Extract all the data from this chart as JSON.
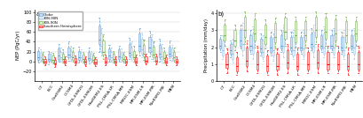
{
  "panel_a_title": "a)",
  "panel_b_title": "b)",
  "ylabel_a": "NEP (PgC/yr)",
  "ylabel_b": "Precipitation (mm/day)",
  "ylim_a": [
    -40,
    105
  ],
  "ylim_b": [
    0,
    4.2
  ],
  "yticks_a": [
    -20,
    0,
    20,
    40,
    60,
    80,
    100
  ],
  "yticks_b": [
    0.0,
    1.0,
    2.0,
    3.0,
    4.0
  ],
  "models": [
    "CT",
    "BCC",
    "CanESM2",
    "CCSM4",
    "GFDL-ESM2G",
    "GFDL-ESM2M",
    "HadGEM2-ES",
    "IPSL-CM5A-LR",
    "IPSL-CM5A-MR",
    "MIROC-ESM",
    "MPI-ESM-LR",
    "MPI-ESM-MR",
    "NorESM1-ME",
    "MEM"
  ],
  "legend_labels": [
    "Globe",
    "30N-90N",
    "30S-90N",
    "Southern Hemisphere"
  ],
  "colors": [
    "#5B9BD5",
    "#9DC3E6",
    "#70AD47",
    "#FF0000"
  ],
  "face_colors": [
    "#BDD7EE",
    "#DEEAF1",
    "#E2EFDA",
    "#FFB3B3"
  ],
  "series": {
    "nep": {
      "Globe": {
        "CT": [
          -2,
          4,
          8,
          14,
          22,
          28
        ],
        "BCC": [
          -5,
          2,
          6,
          10,
          16,
          22
        ],
        "CanESM2": [
          0,
          6,
          12,
          18,
          26,
          36
        ],
        "CCSM4": [
          2,
          8,
          14,
          20,
          28,
          40
        ],
        "GFDL-ESM2G": [
          -2,
          4,
          8,
          14,
          22,
          30
        ],
        "GFDL-ESM2M": [
          -3,
          3,
          7,
          13,
          20,
          28
        ],
        "HadGEM2-ES": [
          20,
          35,
          45,
          58,
          72,
          88
        ],
        "IPSL-CM5A-LR": [
          0,
          6,
          12,
          18,
          26,
          34
        ],
        "IPSL-CM5A-MR": [
          0,
          5,
          10,
          16,
          24,
          32
        ],
        "MIROC-ESM": [
          5,
          12,
          18,
          26,
          36,
          48
        ],
        "MPI-ESM-LR": [
          12,
          22,
          32,
          44,
          56,
          68
        ],
        "MPI-ESM-MR": [
          10,
          20,
          28,
          38,
          50,
          62
        ],
        "NorESM1-ME": [
          0,
          8,
          15,
          24,
          34,
          46
        ],
        "MEM": [
          4,
          10,
          16,
          22,
          30,
          42
        ]
      },
      "30N-90N": {
        "CT": [
          0,
          4,
          8,
          13,
          18,
          24
        ],
        "BCC": [
          -2,
          3,
          6,
          10,
          15,
          20
        ],
        "CanESM2": [
          0,
          5,
          9,
          14,
          20,
          28
        ],
        "CCSM4": [
          2,
          6,
          10,
          16,
          22,
          32
        ],
        "GFDL-ESM2G": [
          0,
          4,
          8,
          13,
          18,
          24
        ],
        "GFDL-ESM2M": [
          -2,
          2,
          6,
          10,
          15,
          22
        ],
        "HadGEM2-ES": [
          12,
          22,
          32,
          44,
          56,
          68
        ],
        "IPSL-CM5A-LR": [
          0,
          4,
          9,
          14,
          20,
          28
        ],
        "IPSL-CM5A-MR": [
          0,
          4,
          8,
          13,
          18,
          26
        ],
        "MIROC-ESM": [
          4,
          9,
          14,
          20,
          28,
          40
        ],
        "MPI-ESM-LR": [
          8,
          16,
          24,
          34,
          46,
          58
        ],
        "MPI-ESM-MR": [
          6,
          14,
          22,
          30,
          42,
          54
        ],
        "NorESM1-ME": [
          -2,
          5,
          10,
          18,
          26,
          36
        ],
        "MEM": [
          2,
          7,
          12,
          18,
          26,
          34
        ]
      },
      "30S-90N": {
        "CT": [
          -2,
          2,
          5,
          9,
          14,
          20
        ],
        "BCC": [
          -4,
          0,
          4,
          8,
          12,
          18
        ],
        "CanESM2": [
          -2,
          2,
          6,
          10,
          16,
          24
        ],
        "CCSM4": [
          0,
          4,
          8,
          14,
          20,
          28
        ],
        "GFDL-ESM2G": [
          -2,
          2,
          5,
          9,
          14,
          20
        ],
        "GFDL-ESM2M": [
          -3,
          0,
          4,
          8,
          12,
          18
        ],
        "HadGEM2-ES": [
          6,
          14,
          20,
          30,
          42,
          54
        ],
        "IPSL-CM5A-LR": [
          -2,
          2,
          6,
          10,
          16,
          22
        ],
        "IPSL-CM5A-MR": [
          -2,
          2,
          5,
          9,
          14,
          20
        ],
        "MIROC-ESM": [
          0,
          5,
          9,
          15,
          22,
          32
        ],
        "MPI-ESM-LR": [
          4,
          10,
          16,
          24,
          34,
          44
        ],
        "MPI-ESM-MR": [
          2,
          8,
          14,
          20,
          30,
          40
        ],
        "NorESM1-ME": [
          -2,
          3,
          7,
          13,
          20,
          28
        ],
        "MEM": [
          0,
          4,
          8,
          13,
          20,
          28
        ]
      },
      "Southern Hemisphere": {
        "CT": [
          -8,
          -4,
          -1,
          2,
          6,
          10
        ],
        "BCC": [
          -10,
          -6,
          -3,
          0,
          4,
          8
        ],
        "CanESM2": [
          -8,
          -4,
          -1,
          2,
          6,
          10
        ],
        "CCSM4": [
          -8,
          -4,
          0,
          3,
          7,
          12
        ],
        "GFDL-ESM2G": [
          -9,
          -5,
          -1,
          2,
          6,
          10
        ],
        "GFDL-ESM2M": [
          -9,
          -5,
          -2,
          1,
          5,
          9
        ],
        "HadGEM2-ES": [
          -8,
          -4,
          0,
          3,
          8,
          14
        ],
        "IPSL-CM5A-LR": [
          -8,
          -4,
          -1,
          2,
          6,
          10
        ],
        "IPSL-CM5A-MR": [
          -8,
          -4,
          -1,
          2,
          6,
          10
        ],
        "MIROC-ESM": [
          -8,
          -4,
          0,
          3,
          8,
          14
        ],
        "MPI-ESM-LR": [
          -6,
          -2,
          2,
          5,
          10,
          16
        ],
        "MPI-ESM-MR": [
          -6,
          -2,
          2,
          5,
          10,
          16
        ],
        "NorESM1-ME": [
          -8,
          -4,
          0,
          3,
          8,
          14
        ],
        "MEM": [
          -8,
          -4,
          -1,
          2,
          6,
          10
        ]
      }
    },
    "precip": {
      "Globe": {
        "CT": [
          1.7,
          1.9,
          2.1,
          2.3,
          2.5,
          2.7
        ],
        "BCC": [
          1.4,
          1.6,
          1.8,
          2.0,
          2.2,
          2.4
        ],
        "CanESM2": [
          1.9,
          2.1,
          2.4,
          2.7,
          3.0,
          3.3
        ],
        "CCSM4": [
          1.6,
          1.8,
          2.1,
          2.4,
          2.7,
          3.0
        ],
        "GFDL-ESM2G": [
          1.5,
          1.7,
          1.9,
          2.2,
          2.5,
          2.8
        ],
        "GFDL-ESM2M": [
          1.5,
          1.7,
          2.0,
          2.3,
          2.6,
          2.9
        ],
        "HadGEM2-ES": [
          1.7,
          1.9,
          2.1,
          2.4,
          2.7,
          3.0
        ],
        "IPSL-CM5A-LR": [
          1.6,
          1.8,
          2.0,
          2.3,
          2.6,
          2.9
        ],
        "IPSL-CM5A-MR": [
          1.6,
          1.8,
          2.0,
          2.3,
          2.6,
          2.9
        ],
        "MIROC-ESM": [
          1.8,
          2.0,
          2.2,
          2.5,
          2.8,
          3.1
        ],
        "MPI-ESM-LR": [
          1.7,
          1.9,
          2.1,
          2.4,
          2.7,
          3.0
        ],
        "MPI-ESM-MR": [
          1.7,
          1.9,
          2.1,
          2.4,
          2.7,
          3.0
        ],
        "NorESM1-ME": [
          1.6,
          1.8,
          2.0,
          2.3,
          2.6,
          2.9
        ],
        "MEM": [
          1.7,
          1.9,
          2.1,
          2.4,
          2.7,
          3.0
        ]
      },
      "30N-90N": {
        "CT": [
          1.3,
          1.5,
          1.8,
          2.1,
          2.4,
          2.7
        ],
        "BCC": [
          1.1,
          1.3,
          1.6,
          1.9,
          2.2,
          2.5
        ],
        "CanESM2": [
          1.5,
          1.8,
          2.2,
          2.6,
          3.0,
          3.4
        ],
        "CCSM4": [
          1.3,
          1.6,
          2.0,
          2.4,
          2.8,
          3.2
        ],
        "GFDL-ESM2G": [
          1.2,
          1.4,
          1.7,
          2.0,
          2.4,
          2.7
        ],
        "GFDL-ESM2M": [
          1.2,
          1.5,
          1.8,
          2.2,
          2.5,
          2.8
        ],
        "HadGEM2-ES": [
          1.4,
          1.7,
          2.1,
          2.5,
          2.9,
          3.3
        ],
        "IPSL-CM5A-LR": [
          1.3,
          1.5,
          1.8,
          2.2,
          2.6,
          3.0
        ],
        "IPSL-CM5A-MR": [
          1.3,
          1.5,
          1.9,
          2.2,
          2.6,
          3.0
        ],
        "MIROC-ESM": [
          1.4,
          1.7,
          2.1,
          2.5,
          2.9,
          3.3
        ],
        "MPI-ESM-LR": [
          1.4,
          1.6,
          2.0,
          2.4,
          2.8,
          3.2
        ],
        "MPI-ESM-MR": [
          1.4,
          1.6,
          2.0,
          2.3,
          2.7,
          3.1
        ],
        "NorESM1-ME": [
          1.3,
          1.5,
          1.8,
          2.2,
          2.6,
          3.0
        ],
        "MEM": [
          1.3,
          1.6,
          2.0,
          2.3,
          2.7,
          3.1
        ]
      },
      "30S-90N": {
        "CT": [
          2.1,
          2.4,
          2.7,
          3.0,
          3.3,
          3.6
        ],
        "BCC": [
          1.8,
          2.1,
          2.4,
          2.7,
          3.0,
          3.3
        ],
        "CanESM2": [
          2.2,
          2.6,
          3.0,
          3.4,
          3.8,
          4.1
        ],
        "CCSM4": [
          2.0,
          2.4,
          2.8,
          3.2,
          3.6,
          4.0
        ],
        "GFDL-ESM2G": [
          1.9,
          2.2,
          2.6,
          2.9,
          3.3,
          3.6
        ],
        "GFDL-ESM2M": [
          1.9,
          2.3,
          2.6,
          3.0,
          3.4,
          3.7
        ],
        "HadGEM2-ES": [
          2.1,
          2.5,
          2.9,
          3.3,
          3.7,
          4.0
        ],
        "IPSL-CM5A-LR": [
          2.0,
          2.3,
          2.7,
          3.1,
          3.5,
          3.8
        ],
        "IPSL-CM5A-MR": [
          2.0,
          2.4,
          2.7,
          3.1,
          3.5,
          3.8
        ],
        "MIROC-ESM": [
          2.2,
          2.6,
          3.0,
          3.4,
          3.8,
          4.1
        ],
        "MPI-ESM-LR": [
          2.1,
          2.5,
          2.9,
          3.3,
          3.7,
          4.0
        ],
        "MPI-ESM-MR": [
          2.1,
          2.4,
          2.8,
          3.2,
          3.6,
          3.9
        ],
        "NorESM1-ME": [
          2.0,
          2.3,
          2.7,
          3.1,
          3.5,
          3.8
        ],
        "MEM": [
          2.1,
          2.4,
          2.8,
          3.1,
          3.5,
          3.8
        ]
      },
      "Southern Hemisphere": {
        "CT": [
          0.5,
          0.8,
          1.0,
          1.3,
          1.6,
          1.9
        ],
        "BCC": [
          0.4,
          0.6,
          0.9,
          1.1,
          1.4,
          1.7
        ],
        "CanESM2": [
          0.6,
          0.9,
          1.2,
          1.6,
          2.0,
          2.4
        ],
        "CCSM4": [
          0.5,
          0.7,
          1.0,
          1.4,
          1.7,
          2.1
        ],
        "GFDL-ESM2G": [
          0.4,
          0.6,
          0.9,
          1.2,
          1.5,
          1.8
        ],
        "GFDL-ESM2M": [
          0.4,
          0.7,
          0.9,
          1.2,
          1.6,
          1.9
        ],
        "HadGEM2-ES": [
          0.5,
          0.8,
          1.1,
          1.5,
          1.8,
          2.2
        ],
        "IPSL-CM5A-LR": [
          0.4,
          0.7,
          0.9,
          1.3,
          1.6,
          2.0
        ],
        "IPSL-CM5A-MR": [
          0.5,
          0.7,
          1.0,
          1.3,
          1.7,
          2.0
        ],
        "MIROC-ESM": [
          0.5,
          0.8,
          1.1,
          1.5,
          1.8,
          2.2
        ],
        "MPI-ESM-LR": [
          0.5,
          0.7,
          1.0,
          1.4,
          1.7,
          2.1
        ],
        "MPI-ESM-MR": [
          0.5,
          0.7,
          1.0,
          1.4,
          1.7,
          2.1
        ],
        "NorESM1-ME": [
          0.4,
          0.7,
          0.9,
          1.3,
          1.6,
          2.0
        ],
        "MEM": [
          0.5,
          0.7,
          1.0,
          1.3,
          1.7,
          2.1
        ]
      }
    }
  }
}
